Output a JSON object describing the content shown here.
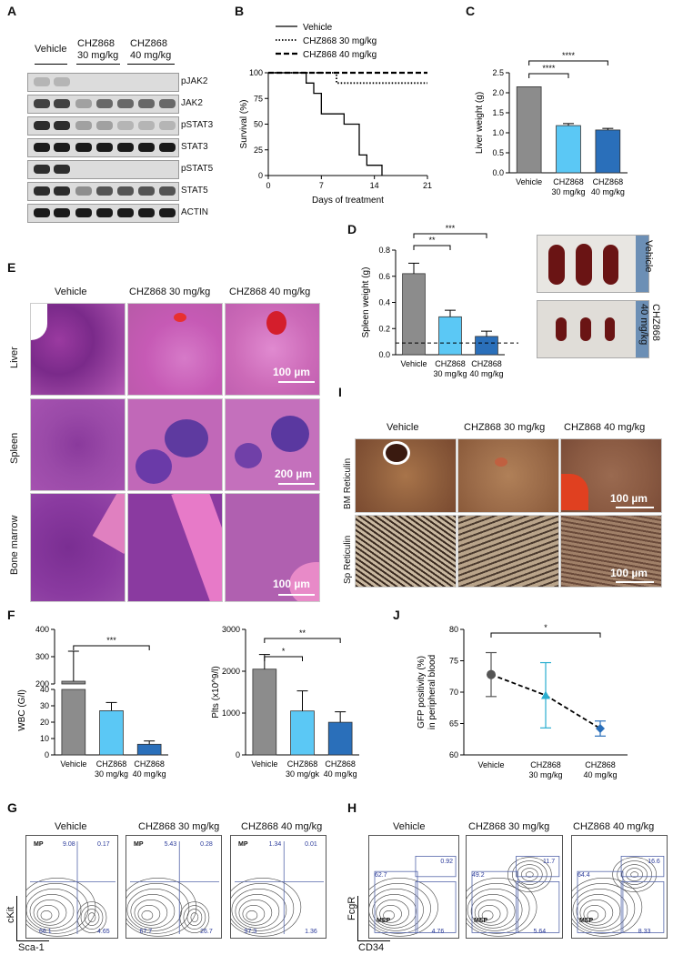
{
  "panels": {
    "A": "A",
    "B": "B",
    "C": "C",
    "D": "D",
    "E": "E",
    "F": "F",
    "G": "G",
    "H": "H",
    "I": "I",
    "J": "J"
  },
  "panelA": {
    "lanes": [
      "Vehicle",
      "CHZ868\n30 mg/kg",
      "CHZ868\n40 mg/kg"
    ],
    "lane_vehicle": "Vehicle",
    "lane_30_line1": "CHZ868",
    "lane_30_line2": "30 mg/kg",
    "lane_40_line1": "CHZ868",
    "lane_40_line2": "40 mg/kg",
    "rows": [
      "pJAK2",
      "JAK2",
      "pSTAT3",
      "STAT3",
      "pSTAT5",
      "STAT5",
      "ACTIN"
    ],
    "band_intensity": [
      [
        0.2,
        0.2,
        0,
        0,
        0,
        0,
        0
      ],
      [
        0.8,
        0.8,
        0.3,
        0.6,
        0.6,
        0.6,
        0.6
      ],
      [
        0.9,
        0.9,
        0.3,
        0.3,
        0.2,
        0.2,
        0.2
      ],
      [
        1,
        1,
        1,
        1,
        1,
        1,
        1
      ],
      [
        0.9,
        0.9,
        0,
        0,
        0,
        0,
        0
      ],
      [
        0.9,
        0.9,
        0.4,
        0.7,
        0.7,
        0.7,
        0.7
      ],
      [
        1,
        1,
        1,
        1,
        1,
        1,
        1
      ]
    ]
  },
  "chart_data": [
    {
      "id": "B",
      "type": "line",
      "xlabel": "Days of treatment",
      "ylabel": "Survival (%)",
      "xlim": [
        0,
        21
      ],
      "ylim": [
        0,
        100
      ],
      "xticks": [
        0,
        7,
        14,
        21
      ],
      "yticks": [
        0,
        25,
        50,
        75,
        100
      ],
      "legend_position": "top",
      "series": [
        {
          "name": "Vehicle",
          "style": "solid",
          "steps": [
            [
              0,
              100
            ],
            [
              5,
              100
            ],
            [
              5,
              90
            ],
            [
              6,
              90
            ],
            [
              6,
              80
            ],
            [
              7,
              80
            ],
            [
              7,
              60
            ],
            [
              10,
              60
            ],
            [
              10,
              50
            ],
            [
              12,
              50
            ],
            [
              12,
              20
            ],
            [
              13,
              20
            ],
            [
              13,
              10
            ],
            [
              15,
              10
            ],
            [
              15,
              0
            ]
          ]
        },
        {
          "name": "CHZ868 30 mg/kg",
          "style": "dotted",
          "steps": [
            [
              0,
              100
            ],
            [
              9,
              100
            ],
            [
              9,
              90
            ],
            [
              21,
              90
            ]
          ]
        },
        {
          "name": "CHZ868 40 mg/kg",
          "style": "dashed",
          "steps": [
            [
              0,
              100
            ],
            [
              21,
              100
            ]
          ]
        }
      ]
    },
    {
      "id": "C",
      "type": "bar",
      "ylabel": "Liver weight (g)",
      "ylim": [
        0,
        2.5
      ],
      "yticks": [
        "0.0",
        "0.5",
        "1.0",
        "1.5",
        "2.0",
        "2.5"
      ],
      "categories": [
        "Vehicle",
        "CHZ868\n30 mg/kg",
        "CHZ868\n40 mg/kg"
      ],
      "values": [
        2.15,
        1.18,
        1.07
      ],
      "errors": [
        0,
        0.05,
        0.04
      ],
      "colors": [
        "#8c8c8c",
        "#5bc8f5",
        "#2a6fba"
      ],
      "significance": [
        "****",
        "****"
      ]
    },
    {
      "id": "D",
      "type": "bar",
      "ylabel": "Spleen weight (g)",
      "ylim": [
        0,
        0.8
      ],
      "yticks": [
        "0.0",
        "0.2",
        "0.4",
        "0.6",
        "0.8"
      ],
      "categories": [
        "Vehicle",
        "CHZ868\n30 mg/kg",
        "CHZ868\n40 mg/kg"
      ],
      "values": [
        0.62,
        0.29,
        0.14
      ],
      "errors": [
        0.08,
        0.05,
        0.04
      ],
      "colors": [
        "#8c8c8c",
        "#5bc8f5",
        "#2a6fba"
      ],
      "reference_line": 0.09,
      "significance": [
        "**",
        "***"
      ]
    },
    {
      "id": "F-WBC",
      "type": "bar",
      "ylabel": "WBC (G/l)",
      "yticks_upper": [
        "200",
        "300",
        "400"
      ],
      "yticks_lower": [
        "0",
        "10",
        "20",
        "30",
        "40"
      ],
      "categories": [
        "Vehicle",
        "CHZ868\n30 mg/kg",
        "CHZ868\n40 mg/kg"
      ],
      "values": [
        210,
        27,
        6.5
      ],
      "errors": [
        110,
        5,
        2
      ],
      "colors": [
        "#8c8c8c",
        "#5bc8f5",
        "#2a6fba"
      ],
      "significance": [
        "***"
      ]
    },
    {
      "id": "F-Plts",
      "type": "bar",
      "ylabel": "Plts (x10^9/l)",
      "ylim": [
        0,
        3000
      ],
      "yticks": [
        "0",
        "1000",
        "2000",
        "3000"
      ],
      "categories": [
        "Vehicle",
        "CHZ868\n30 mg/gk",
        "CHZ868\n40 mg/kg"
      ],
      "values": [
        2050,
        1050,
        780
      ],
      "errors": [
        350,
        480,
        250
      ],
      "colors": [
        "#8c8c8c",
        "#5bc8f5",
        "#2a6fba"
      ],
      "significance": [
        "*",
        "**"
      ]
    },
    {
      "id": "J",
      "type": "scatter",
      "ylabel": "GFP positivity (%)\nin peripheral blood",
      "ylim": [
        60,
        80
      ],
      "yticks": [
        "60",
        "65",
        "70",
        "75",
        "80"
      ],
      "categories": [
        "Vehicle",
        "CHZ868\n30 mg/kg",
        "CHZ868\n40 mg/kg"
      ],
      "values": [
        72.8,
        69.5,
        64.2
      ],
      "errors": [
        3.5,
        5.2,
        1.2
      ],
      "colors": [
        "#555555",
        "#2aaed0",
        "#2a6fba"
      ],
      "significance": [
        "*"
      ]
    }
  ],
  "panelD_photos": {
    "vehicle": "Vehicle",
    "chz_line1": "CHZ868",
    "chz_line2": "40 mg/kg"
  },
  "panelE": {
    "columns": [
      "Vehicle",
      "CHZ868 30 mg/kg",
      "CHZ868 40 mg/kg"
    ],
    "rows": [
      "Liver",
      "Spleen",
      "Bone marrow"
    ],
    "scale": [
      "100 µm",
      "200 µm",
      "100 µm"
    ]
  },
  "panelI": {
    "columns": [
      "Vehicle",
      "CHZ868 30 mg/kg",
      "CHZ868 40 mg/kg"
    ],
    "rows": [
      "BM Reticulin",
      "Sp Reticulin"
    ],
    "scale": [
      "100 µm",
      "100 µm"
    ]
  },
  "panelG": {
    "titles": [
      "Vehicle",
      "CHZ868 30 mg/kg",
      "CHZ868 40 mg/kg"
    ],
    "gate_label": "MP",
    "values": [
      {
        "tl": "9.08",
        "tr": "0.17",
        "bl": "66.1",
        "br": "4.65"
      },
      {
        "tl": "5.43",
        "tr": "0.28",
        "bl": "67.7",
        "br": "26.7"
      },
      {
        "tl": "1.34",
        "tr": "0.01",
        "bl": "97.3",
        "br": "1.36"
      }
    ],
    "yaxis": "cKit",
    "xaxis": "Sca-1"
  },
  "panelH": {
    "titles": [
      "Vehicle",
      "CHZ868 30 mg/kg",
      "CHZ868 40 mg/kg"
    ],
    "gate_label": "MEP",
    "values": [
      {
        "tl": "62.7",
        "tr": "0.92",
        "br": "4.76"
      },
      {
        "tl": "49.2",
        "tr": "11.7",
        "br": "5.64"
      },
      {
        "tl": "64.4",
        "tr": "16.6",
        "br": "8.33"
      }
    ],
    "yaxis": "FcgR",
    "xaxis": "CD34"
  },
  "colors": {
    "vehicle": "#8c8c8c",
    "chz30": "#5bc8f5",
    "chz40": "#2a6fba"
  }
}
